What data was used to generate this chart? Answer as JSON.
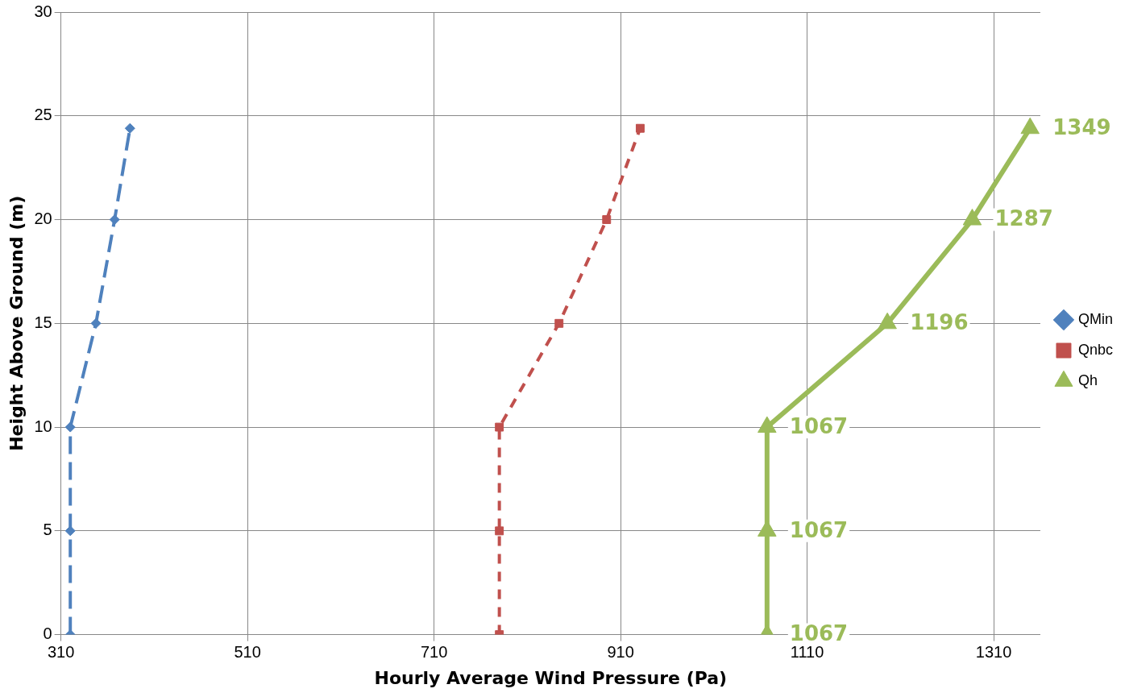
{
  "chart_data": {
    "type": "line",
    "xlabel": "Hourly Average Wind Pressure (Pa)",
    "ylabel": "Height Above Ground (m)",
    "xlim": [
      310,
      1360
    ],
    "xticks": [
      310,
      510,
      710,
      910,
      1110,
      1310
    ],
    "ylim": [
      0,
      30
    ],
    "yticks": [
      0,
      5,
      10,
      15,
      20,
      25,
      30
    ],
    "grid": true,
    "legend": "right",
    "series": [
      {
        "name": "QMin",
        "color": "#4f81bd",
        "marker": "diamond",
        "line_style": "dashed",
        "x": [
          320,
          320,
          320,
          347.5,
          367.5,
          384
        ],
        "values": [
          0,
          5,
          10,
          15,
          20,
          24.4
        ]
      },
      {
        "name": "Qnbc",
        "color": "#c0504d",
        "marker": "square",
        "line_style": "dotted",
        "x": [
          780,
          780,
          780,
          844,
          895,
          931
        ],
        "values": [
          0,
          5,
          10,
          15,
          20,
          24.4
        ]
      },
      {
        "name": "Qh",
        "color": "#9bbb59",
        "marker": "triangle",
        "line_style": "solid",
        "x": [
          1067,
          1067,
          1067,
          1196,
          1287,
          1349
        ],
        "values": [
          0,
          5,
          10,
          15,
          20,
          24.4
        ]
      }
    ],
    "annotations": [
      {
        "text": "1067",
        "x": 1067,
        "y": 0
      },
      {
        "text": "1067",
        "x": 1067,
        "y": 5
      },
      {
        "text": "1067",
        "x": 1067,
        "y": 10
      },
      {
        "text": "1196",
        "x": 1196,
        "y": 15
      },
      {
        "text": "1287",
        "x": 1287,
        "y": 20
      },
      {
        "text": "1349",
        "x": 1349,
        "y": 24.4
      }
    ]
  }
}
